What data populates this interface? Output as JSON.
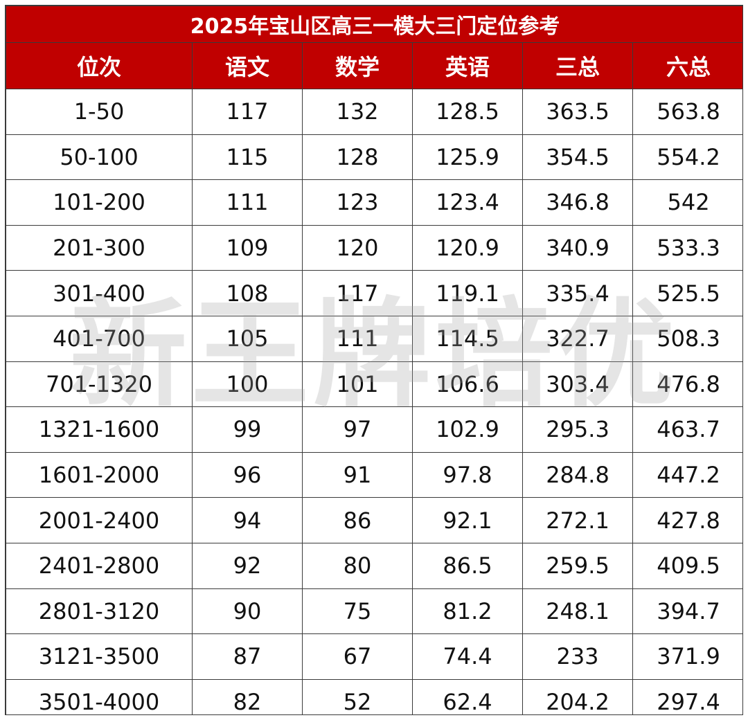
{
  "title": "2025年宝山区高三一模大三门定位参考",
  "columns": [
    "位次",
    "语文",
    "数学",
    "英语",
    "三总",
    "六总"
  ],
  "rows": [
    [
      "1-50",
      "117",
      "132",
      "128.5",
      "363.5",
      "563.8"
    ],
    [
      "50-100",
      "115",
      "128",
      "125.9",
      "354.5",
      "554.2"
    ],
    [
      "101-200",
      "111",
      "123",
      "123.4",
      "346.8",
      "542"
    ],
    [
      "201-300",
      "109",
      "120",
      "120.9",
      "340.9",
      "533.3"
    ],
    [
      "301-400",
      "108",
      "117",
      "119.1",
      "335.4",
      "525.5"
    ],
    [
      "401-700",
      "105",
      "111",
      "114.5",
      "322.7",
      "508.3"
    ],
    [
      "701-1320",
      "100",
      "101",
      "106.6",
      "303.4",
      "476.8"
    ],
    [
      "1321-1600",
      "99",
      "97",
      "102.9",
      "295.3",
      "463.7"
    ],
    [
      "1601-2000",
      "96",
      "91",
      "97.8",
      "284.8",
      "447.2"
    ],
    [
      "2001-2400",
      "94",
      "86",
      "92.1",
      "272.1",
      "427.8"
    ],
    [
      "2401-2800",
      "92",
      "80",
      "86.5",
      "259.5",
      "409.5"
    ],
    [
      "2801-3120",
      "90",
      "75",
      "81.2",
      "248.1",
      "394.7"
    ],
    [
      "3121-3500",
      "87",
      "67",
      "74.4",
      "233",
      "371.9"
    ],
    [
      "3501-4000",
      "82",
      "52",
      "62.4",
      "204.2",
      "297.4"
    ]
  ],
  "watermark": "新王牌培优",
  "colors": {
    "header_bg": "#c00000",
    "header_text": "#ffffff",
    "cell_text": "#111111"
  }
}
